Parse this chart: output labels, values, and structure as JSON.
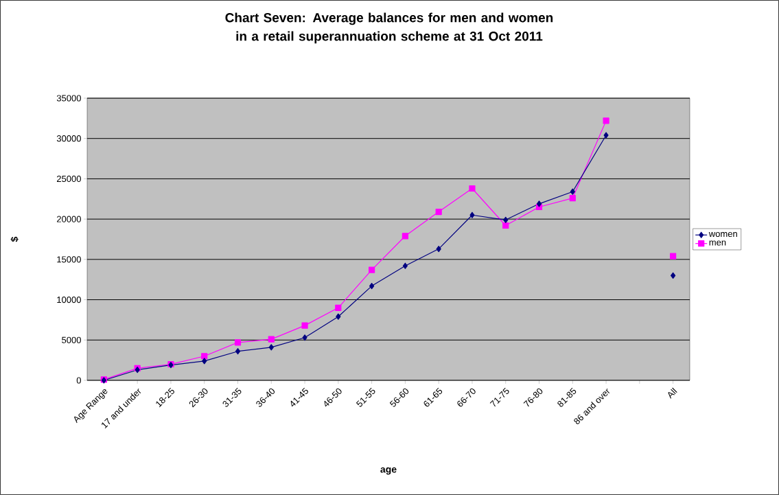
{
  "chart_data": {
    "type": "line",
    "title": "Chart Seven: Average balances for men and women in a retail superannuation scheme at 31 Oct 2011",
    "xlabel": "age",
    "ylabel": "$",
    "categories": [
      "Age Range",
      "17 and under",
      "18-25",
      "26-30",
      "31-35",
      "36-40",
      "41-45",
      "46-50",
      "51-55",
      "56-60",
      "61-65",
      "66-70",
      "71-75",
      "76-80",
      "81-85",
      "86 and over",
      null,
      "All"
    ],
    "series": [
      {
        "name": "women",
        "color": "#000080",
        "marker": "diamond",
        "values": [
          0,
          1300,
          1900,
          2400,
          3600,
          4100,
          5300,
          7900,
          11700,
          14200,
          16300,
          20500,
          19900,
          21900,
          23400,
          30400,
          null,
          13000
        ]
      },
      {
        "name": "men",
        "color": "#ff00ff",
        "marker": "square",
        "values": [
          100,
          1500,
          2000,
          3000,
          4700,
          5100,
          6800,
          9000,
          13700,
          17900,
          20900,
          23800,
          19200,
          21500,
          22600,
          32200,
          null,
          15400
        ]
      }
    ],
    "ylim": [
      0,
      35000
    ],
    "yticks": [
      0,
      5000,
      10000,
      15000,
      20000,
      25000,
      30000,
      35000
    ],
    "grid": "y",
    "legend": "right"
  }
}
